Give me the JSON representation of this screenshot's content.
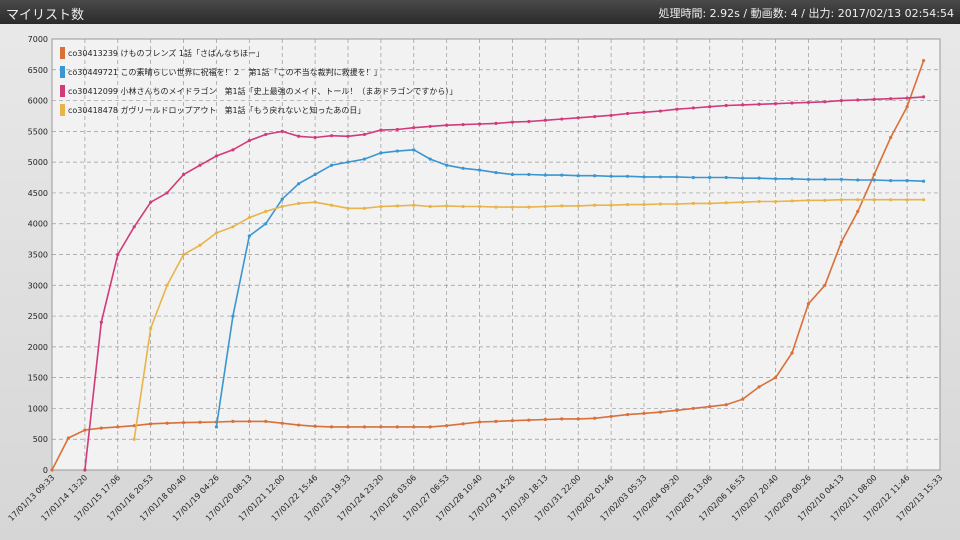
{
  "header": {
    "title": "マイリスト数",
    "status": "処理時間: 2.92s / 動画数: 4 / 出力: 2017/02/13 02:54:54"
  },
  "chart_data": {
    "type": "line",
    "grid": true,
    "legend": "top-left",
    "xlim": [
      "17/01/13 09:33",
      "17/02/13 15:33"
    ],
    "xticks": [
      "17/01/13 09:33",
      "17/01/14 13:20",
      "17/01/15 17:06",
      "17/01/16 20:53",
      "17/01/18 00:40",
      "17/01/19 04:26",
      "17/01/20 08:13",
      "17/01/21 12:00",
      "17/01/22 15:46",
      "17/01/23 19:33",
      "17/01/24 23:20",
      "17/01/26 03:06",
      "17/01/27 06:53",
      "17/01/28 10:40",
      "17/01/29 14:26",
      "17/01/30 18:13",
      "17/01/31 22:00",
      "17/02/02 01:46",
      "17/02/03 05:33",
      "17/02/04 09:20",
      "17/02/05 13:06",
      "17/02/06 16:53",
      "17/02/07 20:40",
      "17/02/09 00:26",
      "17/02/10 04:13",
      "17/02/11 08:00",
      "17/02/12 11:46",
      "17/02/13 15:33"
    ],
    "ylim": [
      0,
      7000
    ],
    "yticks": [
      0,
      500,
      1000,
      1500,
      2000,
      2500,
      3000,
      3500,
      4000,
      4500,
      5000,
      5500,
      6000,
      6500,
      7000
    ],
    "x": [
      "17/01/13 09:33",
      "17/01/13 23:26",
      "17/01/14 13:20",
      "17/01/15 03:13",
      "17/01/15 17:06",
      "17/01/16 07:00",
      "17/01/16 20:53",
      "17/01/17 10:46",
      "17/01/18 00:40",
      "17/01/18 14:33",
      "17/01/19 04:26",
      "17/01/19 18:20",
      "17/01/20 08:13",
      "17/01/20 22:06",
      "17/01/21 12:00",
      "17/01/22 01:53",
      "17/01/22 15:46",
      "17/01/23 05:40",
      "17/01/23 19:33",
      "17/01/24 09:26",
      "17/01/24 23:20",
      "17/01/25 13:13",
      "17/01/26 03:06",
      "17/01/26 17:00",
      "17/01/27 06:53",
      "17/01/27 20:46",
      "17/01/28 10:40",
      "17/01/29 00:33",
      "17/01/29 14:26",
      "17/01/30 04:20",
      "17/01/30 18:13",
      "17/01/31 08:06",
      "17/01/31 22:00",
      "17/02/01 11:53",
      "17/02/02 01:46",
      "17/02/02 15:40",
      "17/02/03 05:33",
      "17/02/03 19:26",
      "17/02/04 09:20",
      "17/02/04 23:13",
      "17/02/05 13:06",
      "17/02/06 03:00",
      "17/02/06 16:53",
      "17/02/07 06:46",
      "17/02/07 20:40",
      "17/02/08 10:33",
      "17/02/09 00:26",
      "17/02/09 14:20",
      "17/02/10 04:13",
      "17/02/10 18:06",
      "17/02/11 08:00",
      "17/02/11 21:53",
      "17/02/12 11:46",
      "17/02/13 01:40"
    ],
    "series": [
      {
        "name": "co30413239 けものフレンズ 1話「さばんなちほー」",
        "color": "#d9703a",
        "values": [
          0,
          520,
          650,
          680,
          700,
          720,
          750,
          760,
          770,
          775,
          780,
          790,
          790,
          790,
          760,
          730,
          710,
          700,
          700,
          700,
          700,
          700,
          700,
          700,
          720,
          750,
          780,
          790,
          800,
          810,
          820,
          830,
          830,
          840,
          870,
          900,
          920,
          940,
          970,
          1000,
          1030,
          1060,
          1150,
          1350,
          1500,
          1900,
          2700,
          3000,
          3700,
          4200,
          4800,
          5400,
          5900,
          6650
        ]
      },
      {
        "name": "co30449721 この素晴らしい世界に祝福を！２　第1話「この不当な裁判に救援を！」",
        "color": "#3a96d0",
        "values": [
          null,
          null,
          null,
          null,
          null,
          null,
          null,
          null,
          null,
          null,
          700,
          2500,
          3800,
          4000,
          4400,
          4650,
          4800,
          4950,
          5000,
          5050,
          5150,
          5180,
          5200,
          5050,
          4950,
          4900,
          4870,
          4830,
          4800,
          4800,
          4790,
          4790,
          4780,
          4780,
          4770,
          4770,
          4760,
          4760,
          4760,
          4750,
          4750,
          4750,
          4740,
          4740,
          4730,
          4730,
          4720,
          4720,
          4720,
          4710,
          4710,
          4700,
          4700,
          4690
        ]
      },
      {
        "name": "co30412099 小林さんちのメイドラゴン　第1話「史上最強のメイド、トール！（まあドラゴンですから）」",
        "color": "#d23a7a",
        "values": [
          null,
          null,
          0,
          2400,
          3500,
          3950,
          4350,
          4500,
          4800,
          4950,
          5100,
          5200,
          5350,
          5450,
          5500,
          5420,
          5400,
          5430,
          5420,
          5450,
          5520,
          5530,
          5560,
          5580,
          5600,
          5610,
          5620,
          5630,
          5650,
          5660,
          5680,
          5700,
          5720,
          5740,
          5760,
          5790,
          5810,
          5830,
          5860,
          5880,
          5900,
          5920,
          5930,
          5940,
          5950,
          5960,
          5970,
          5980,
          6000,
          6010,
          6020,
          6030,
          6040,
          6060
        ]
      },
      {
        "name": "co30418478 ガヴリールドロップアウト　第1話「もう戻れないと知ったあの日」",
        "color": "#e8b44a",
        "values": [
          null,
          null,
          null,
          null,
          null,
          500,
          2300,
          3000,
          3500,
          3650,
          3850,
          3950,
          4100,
          4200,
          4280,
          4330,
          4350,
          4300,
          4250,
          4250,
          4280,
          4290,
          4300,
          4280,
          4290,
          4280,
          4280,
          4270,
          4270,
          4270,
          4280,
          4290,
          4290,
          4300,
          4300,
          4310,
          4310,
          4320,
          4320,
          4330,
          4330,
          4340,
          4350,
          4360,
          4360,
          4370,
          4380,
          4380,
          4390,
          4390,
          4390,
          4390,
          4390,
          4390
        ]
      }
    ]
  }
}
